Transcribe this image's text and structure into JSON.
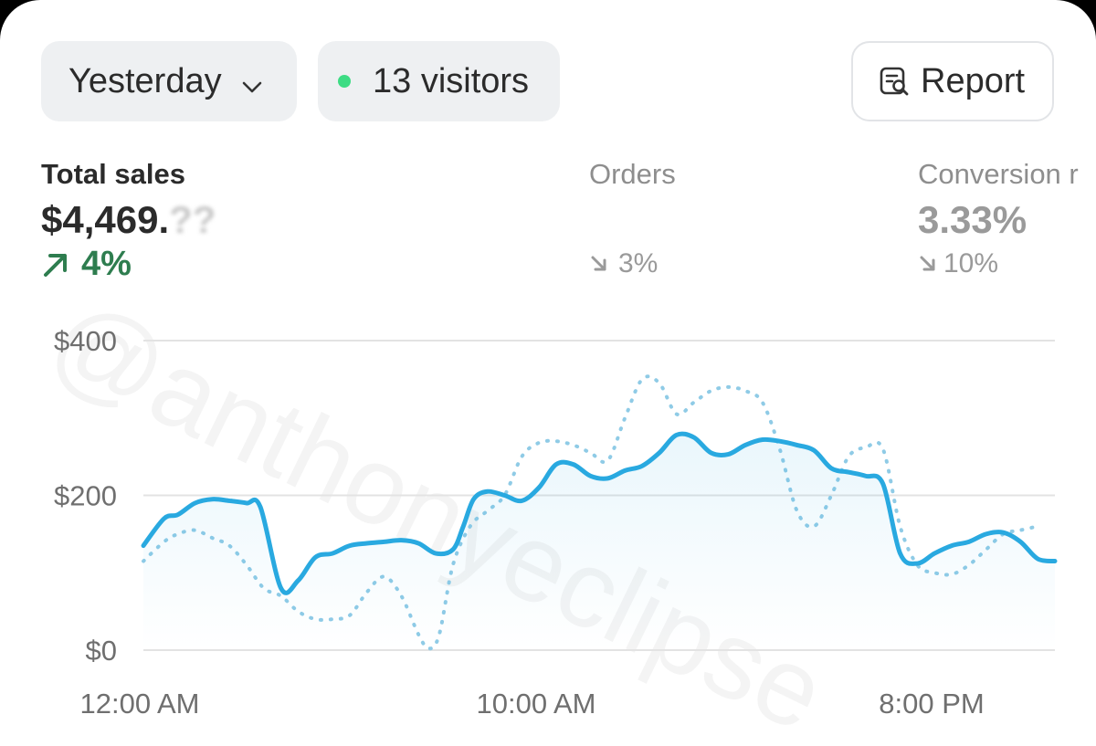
{
  "toolbar": {
    "period_label": "Yesterday",
    "visitors_label": "13 visitors",
    "report_label": "Report"
  },
  "metrics": {
    "total_sales": {
      "label": "Total sales",
      "value": "$4,469.",
      "value_obscured": "??",
      "change": "4%",
      "direction": "up"
    },
    "orders": {
      "label": "Orders",
      "change": "3%",
      "direction": "down"
    },
    "conversion": {
      "label": "Conversion r",
      "value": "3.33%",
      "change": "10%",
      "direction": "down"
    }
  },
  "watermark": "@anthonyeclipse",
  "colors": {
    "accent": "#29a9e0",
    "comparison": "#8fcbe6",
    "positive": "#2e7d4f",
    "muted": "#9a9a9a",
    "live_dot": "#3ddc84"
  },
  "chart_data": {
    "type": "line",
    "y_ticks": [
      "$400",
      "$200",
      "$0"
    ],
    "x_ticks": [
      "12:00 AM",
      "10:00 AM",
      "8:00 PM"
    ],
    "x_range_hours": [
      0,
      23
    ],
    "ylim": [
      0,
      400
    ],
    "grid": true,
    "series": [
      {
        "style": "solid",
        "values": [
          [
            0,
            135
          ],
          [
            0.6,
            170
          ],
          [
            1,
            175
          ],
          [
            1.5,
            190
          ],
          [
            2,
            195
          ],
          [
            2.5,
            193
          ],
          [
            3,
            190
          ],
          [
            3.4,
            185
          ],
          [
            4,
            80
          ],
          [
            4.5,
            90
          ],
          [
            5,
            120
          ],
          [
            5.5,
            125
          ],
          [
            6,
            135
          ],
          [
            6.5,
            138
          ],
          [
            7,
            140
          ],
          [
            7.5,
            142
          ],
          [
            8,
            138
          ],
          [
            8.5,
            125
          ],
          [
            9,
            130
          ],
          [
            9.3,
            160
          ],
          [
            9.6,
            195
          ],
          [
            10,
            205
          ],
          [
            10.5,
            200
          ],
          [
            11,
            193
          ],
          [
            11.5,
            210
          ],
          [
            12,
            240
          ],
          [
            12.5,
            240
          ],
          [
            13,
            225
          ],
          [
            13.5,
            222
          ],
          [
            14,
            232
          ],
          [
            14.5,
            238
          ],
          [
            15,
            255
          ],
          [
            15.5,
            278
          ],
          [
            16,
            275
          ],
          [
            16.5,
            255
          ],
          [
            17,
            253
          ],
          [
            17.5,
            265
          ],
          [
            18,
            272
          ],
          [
            18.5,
            270
          ],
          [
            19,
            265
          ],
          [
            19.5,
            258
          ],
          [
            20,
            235
          ],
          [
            20.5,
            230
          ],
          [
            21,
            225
          ],
          [
            21.5,
            215
          ],
          [
            22,
            125
          ],
          [
            22.5,
            112
          ],
          [
            23,
            125
          ],
          [
            23.5,
            135
          ],
          [
            24,
            140
          ],
          [
            24.5,
            150
          ],
          [
            25,
            152
          ],
          [
            25.5,
            140
          ],
          [
            26,
            118
          ],
          [
            26.5,
            115
          ]
        ]
      },
      {
        "style": "dotted",
        "values": [
          [
            0,
            115
          ],
          [
            0.6,
            140
          ],
          [
            1,
            150
          ],
          [
            1.5,
            155
          ],
          [
            2,
            145
          ],
          [
            2.5,
            135
          ],
          [
            3,
            110
          ],
          [
            3.5,
            80
          ],
          [
            4,
            70
          ],
          [
            4.5,
            50
          ],
          [
            5,
            40
          ],
          [
            5.5,
            40
          ],
          [
            6,
            45
          ],
          [
            6.5,
            75
          ],
          [
            7,
            95
          ],
          [
            7.5,
            70
          ],
          [
            8,
            20
          ],
          [
            8.3,
            2
          ],
          [
            8.6,
            20
          ],
          [
            9,
            110
          ],
          [
            9.5,
            160
          ],
          [
            10,
            180
          ],
          [
            10.5,
            200
          ],
          [
            11,
            250
          ],
          [
            11.5,
            268
          ],
          [
            12,
            270
          ],
          [
            12.5,
            265
          ],
          [
            13,
            255
          ],
          [
            13.5,
            245
          ],
          [
            14,
            300
          ],
          [
            14.5,
            350
          ],
          [
            15,
            345
          ],
          [
            15.5,
            305
          ],
          [
            16,
            320
          ],
          [
            16.5,
            335
          ],
          [
            17,
            340
          ],
          [
            17.5,
            335
          ],
          [
            18,
            320
          ],
          [
            18.5,
            260
          ],
          [
            19,
            180
          ],
          [
            19.5,
            160
          ],
          [
            20,
            200
          ],
          [
            20.5,
            250
          ],
          [
            21,
            262
          ],
          [
            21.5,
            260
          ],
          [
            22,
            160
          ],
          [
            22.5,
            110
          ],
          [
            23,
            100
          ],
          [
            23.5,
            98
          ],
          [
            24,
            110
          ],
          [
            24.5,
            130
          ],
          [
            25,
            150
          ],
          [
            25.5,
            155
          ],
          [
            26,
            160
          ]
        ]
      }
    ]
  }
}
